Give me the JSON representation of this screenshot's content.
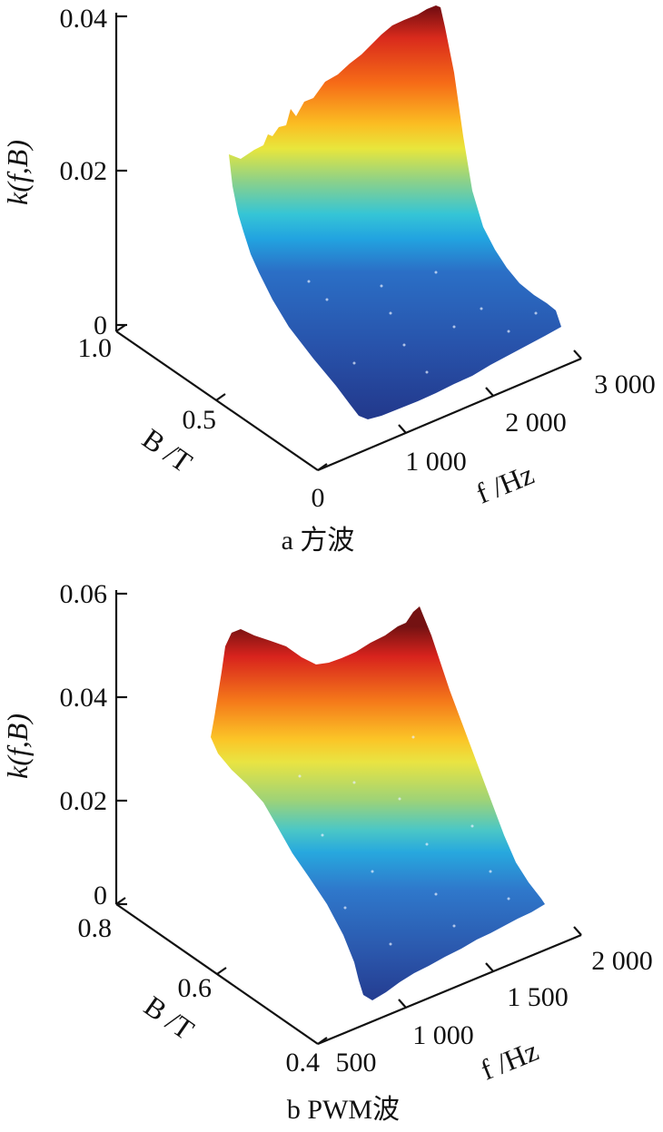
{
  "chart_data": [
    {
      "type": "surface",
      "caption": "a 方波",
      "zlabel": "k(f,B)",
      "xlabel": "f /Hz",
      "ylabel": "B /T",
      "zlim": [
        0,
        0.04
      ],
      "xlim": [
        0,
        3000
      ],
      "ylim": [
        0,
        1.0
      ],
      "z_ticks": [
        "0",
        "0.02",
        "0.04"
      ],
      "x_ticks": [
        "0",
        "1 000",
        "2 000",
        "3 000"
      ],
      "y_ticks": [
        "1.0",
        "0.5"
      ],
      "colormap": "jet",
      "surface": {
        "f": [
          400,
          1000,
          2000,
          3000
        ],
        "B": [
          0.2,
          1.0
        ],
        "k": [
          [
            0.0,
            0.0,
            0.002,
            0.003
          ],
          [
            0.022,
            0.026,
            0.034,
            0.042
          ]
        ]
      }
    },
    {
      "type": "surface",
      "caption": "b PWM波",
      "zlabel": "k(f,B)",
      "xlabel": "f /Hz",
      "ylabel": "B /T",
      "zlim": [
        0,
        0.06
      ],
      "xlim": [
        500,
        2000
      ],
      "ylim": [
        0.4,
        0.8
      ],
      "z_ticks": [
        "0",
        "0.02",
        "0.04",
        "0.06"
      ],
      "x_ticks": [
        "500",
        "1 000",
        "1 500",
        "2 000"
      ],
      "y_ticks": [
        "0.8",
        "0.6",
        "0.4"
      ],
      "colormap": "jet",
      "surface": {
        "f": [
          500,
          1000,
          2000
        ],
        "B": [
          0.4,
          0.8
        ],
        "k": [
          [
            0.0,
            0.0,
            0.001
          ],
          [
            0.052,
            0.05,
            0.056
          ]
        ]
      }
    }
  ]
}
